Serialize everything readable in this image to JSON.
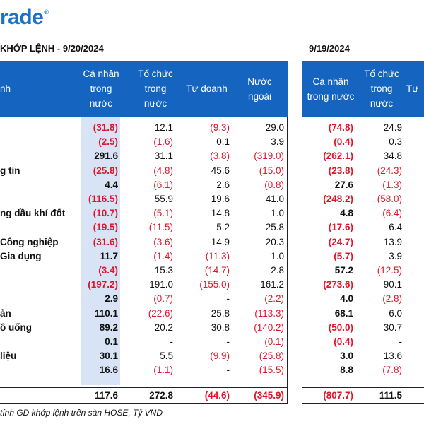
{
  "logo": {
    "text": "rade",
    "mark": "®"
  },
  "header": {
    "left_title": "KHỚP LỆNH - 9/20/2024",
    "right_title": "9/19/2024"
  },
  "columns_left": [
    {
      "label": "nh"
    },
    {
      "label": "Cá nhân\ntrong\nnước"
    },
    {
      "label": "Tổ chức\ntrong\nnước"
    },
    {
      "label": "Tự doanh"
    },
    {
      "label": "Nước\nngoài"
    }
  ],
  "columns_right": [
    {
      "label": "Cá nhân\ntrong nước"
    },
    {
      "label": "Tổ chức\ntrong\nnước"
    },
    {
      "label": "Tự"
    }
  ],
  "rows": [
    {
      "label": "",
      "l": [
        "(31.8)",
        "12.1",
        "(9.3)",
        "29.0"
      ],
      "r": [
        "(74.8)",
        "24.9"
      ]
    },
    {
      "label": "",
      "l": [
        "(2.5)",
        "(1.6)",
        "0.1",
        "3.9"
      ],
      "r": [
        "(0.4)",
        "0.3"
      ]
    },
    {
      "label": "",
      "l": [
        "291.6",
        "31.1",
        "(3.8)",
        "(319.0)"
      ],
      "r": [
        "(262.1)",
        "34.8"
      ]
    },
    {
      "label": "g tin",
      "l": [
        "(25.8)",
        "(4.8)",
        "45.6",
        "(15.0)"
      ],
      "r": [
        "(23.8)",
        "(24.3)"
      ]
    },
    {
      "label": "",
      "l": [
        "4.4",
        "(6.1)",
        "2.6",
        "(0.8)"
      ],
      "r": [
        "27.6",
        "(1.3)"
      ]
    },
    {
      "label": "",
      "l": [
        "(116.5)",
        "55.9",
        "19.6",
        "41.0"
      ],
      "r": [
        "(248.2)",
        "(58.0)"
      ]
    },
    {
      "label": "ng dầu khí đốt",
      "l": [
        "(10.7)",
        "(5.1)",
        "14.8",
        "1.0"
      ],
      "r": [
        "4.8",
        "(6.4)"
      ]
    },
    {
      "label": "",
      "l": [
        "(19.5)",
        "(11.5)",
        "5.2",
        "25.8"
      ],
      "r": [
        "(17.6)",
        "6.4"
      ]
    },
    {
      "label": "Công nghiệp",
      "l": [
        "(31.6)",
        "(3.6)",
        "14.9",
        "20.3"
      ],
      "r": [
        "(24.7)",
        "13.9"
      ]
    },
    {
      "label": "Gia dụng",
      "l": [
        "11.7",
        "(1.4)",
        "(11.3)",
        "1.0"
      ],
      "r": [
        "(5.7)",
        "3.9"
      ]
    },
    {
      "label": "",
      "l": [
        "(3.4)",
        "15.3",
        "(14.7)",
        "2.8"
      ],
      "r": [
        "57.2",
        "(12.5)"
      ]
    },
    {
      "label": "",
      "l": [
        "(197.2)",
        "191.0",
        "(155.0)",
        "161.2"
      ],
      "r": [
        "(273.6)",
        "90.1"
      ]
    },
    {
      "label": "",
      "l": [
        "2.9",
        "(0.7)",
        "-",
        "(2.2)"
      ],
      "r": [
        "4.0",
        "(2.8)"
      ]
    },
    {
      "label": "ản",
      "l": [
        "110.1",
        "(22.6)",
        "25.8",
        "(113.3)"
      ],
      "r": [
        "68.1",
        "6.0"
      ]
    },
    {
      "label": "ồ uống",
      "l": [
        "89.2",
        "20.2",
        "30.8",
        "(140.2)"
      ],
      "r": [
        "(50.0)",
        "30.7"
      ]
    },
    {
      "label": "",
      "l": [
        "0.1",
        "-",
        "-",
        "(0.1)"
      ],
      "r": [
        "(0.4)",
        "-"
      ]
    },
    {
      "label": "liệu",
      "l": [
        "30.1",
        "5.5",
        "(9.9)",
        "(25.8)"
      ],
      "r": [
        "3.0",
        "13.6"
      ]
    },
    {
      "label": "",
      "l": [
        "16.6",
        "(1.1)",
        "-",
        "(15.5)"
      ],
      "r": [
        "8.8",
        "(7.8)"
      ]
    }
  ],
  "total": {
    "l": [
      "117.6",
      "272.8",
      "(44.6)",
      "(345.9)"
    ],
    "r": [
      "(807.7)",
      "111.5"
    ]
  },
  "footnote": "tính GD khớp lệnh trên sàn HOSE, Tỷ VND",
  "colors": {
    "header_bg": "#1565c0",
    "negative": "#e0152a",
    "highlight": "#d9e3f6",
    "logo": "#1a73c9"
  }
}
